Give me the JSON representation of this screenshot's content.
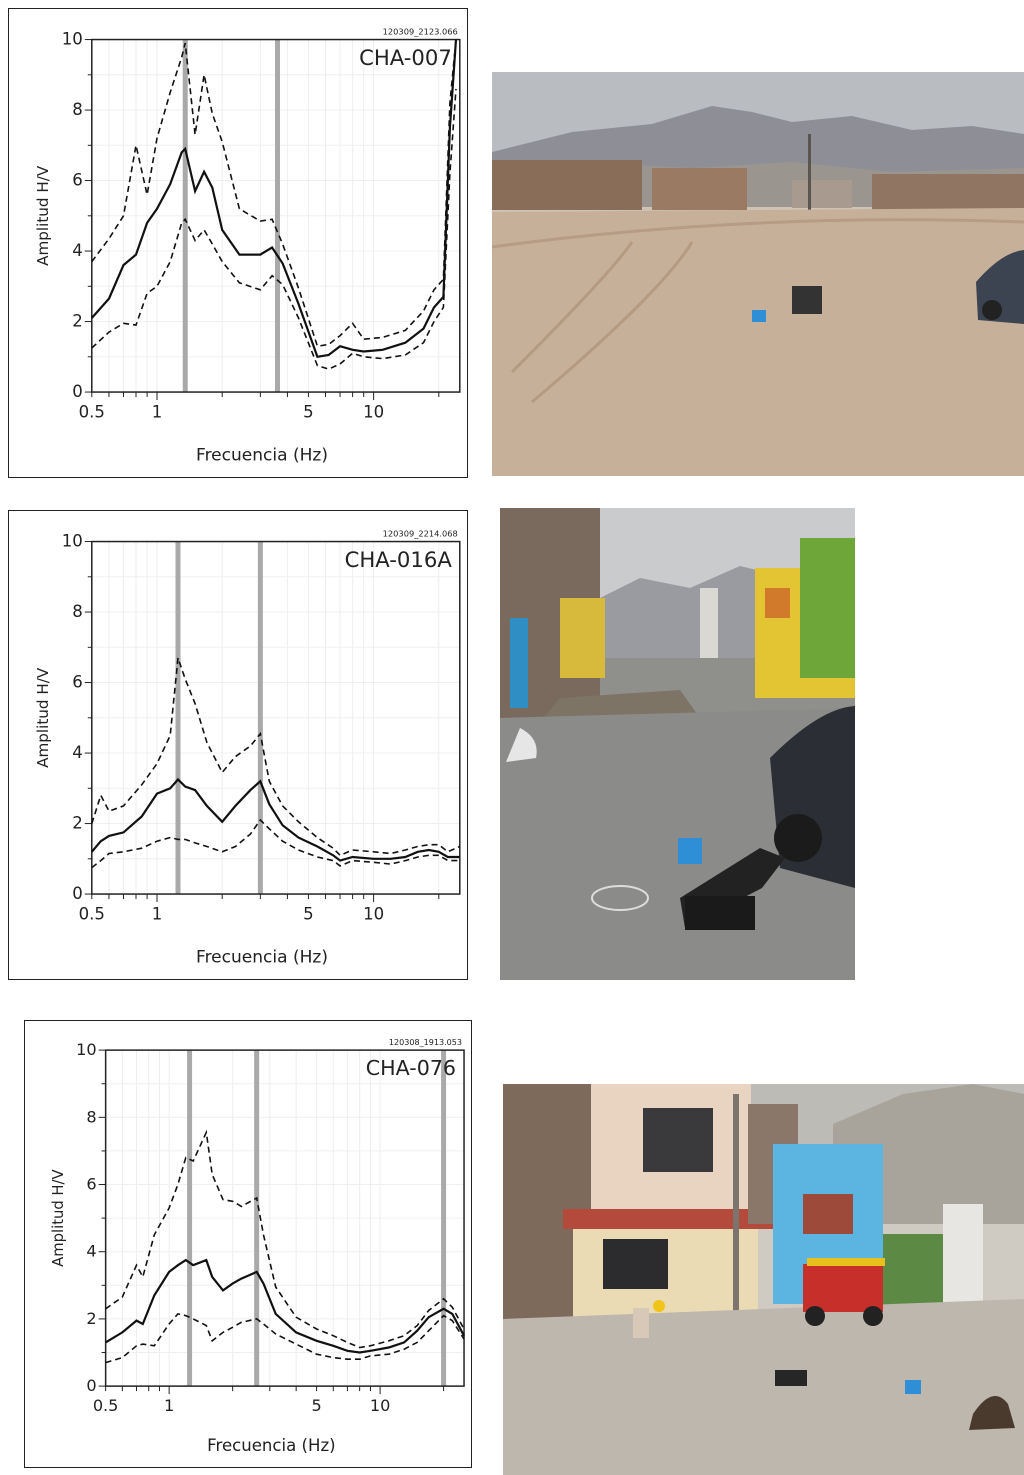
{
  "chart_data": [
    {
      "type": "line",
      "station": "CHA-007",
      "record_id": "120309_2123.066",
      "xlabel": "Frecuencia (Hz)",
      "ylabel": "Amplitud H/V",
      "xscale": "log",
      "xlim": [
        0.5,
        25
      ],
      "ylim": [
        0,
        10
      ],
      "xticks": [
        "0.5",
        "1",
        "5",
        "10"
      ],
      "yticks": [
        "0",
        "2",
        "4",
        "6",
        "8",
        "10"
      ],
      "peak_bands_hz": [
        1.35,
        3.6
      ],
      "x": [
        0.5,
        0.6,
        0.7,
        0.8,
        0.9,
        1.0,
        1.15,
        1.3,
        1.35,
        1.5,
        1.65,
        1.8,
        2.0,
        2.4,
        3.0,
        3.4,
        3.8,
        4.5,
        5.5,
        6.2,
        7.0,
        8.0,
        9.0,
        11.0,
        14.0,
        17.0,
        19.0,
        21.0,
        22.5,
        24.0
      ],
      "series": [
        {
          "values": [
            1.25,
            1.7,
            1.95,
            1.9,
            2.8,
            3.0,
            3.7,
            4.8,
            4.9,
            4.3,
            4.6,
            4.2,
            3.7,
            3.1,
            2.9,
            3.3,
            3.05,
            2.1,
            0.75,
            0.65,
            0.8,
            1.1,
            1.0,
            0.95,
            1.05,
            1.4,
            2.0,
            2.4,
            6.2,
            8.6
          ],
          "style": "dashed"
        },
        {
          "values": [
            2.1,
            2.65,
            3.6,
            3.9,
            4.8,
            5.2,
            5.9,
            6.8,
            6.9,
            5.7,
            6.25,
            5.8,
            4.6,
            3.9,
            3.9,
            4.1,
            3.65,
            2.5,
            1.0,
            1.05,
            1.3,
            1.2,
            1.15,
            1.2,
            1.4,
            1.8,
            2.4,
            2.7,
            7.5,
            10.0
          ],
          "style": "solid"
        },
        {
          "values": [
            3.7,
            4.35,
            5.0,
            7.0,
            5.6,
            7.2,
            8.5,
            9.5,
            9.9,
            7.3,
            9.0,
            7.9,
            7.1,
            5.2,
            4.85,
            4.9,
            4.2,
            2.95,
            1.3,
            1.35,
            1.6,
            1.95,
            1.5,
            1.55,
            1.75,
            2.3,
            2.9,
            3.2,
            8.2,
            10.0
          ],
          "style": "dashed"
        }
      ]
    },
    {
      "type": "line",
      "station": "CHA-016A",
      "record_id": "120309_2214.068",
      "xlabel": "Frecuencia (Hz)",
      "ylabel": "Amplitud H/V",
      "xscale": "log",
      "xlim": [
        0.5,
        25
      ],
      "ylim": [
        0,
        10
      ],
      "xticks": [
        "0.5",
        "1",
        "5",
        "10"
      ],
      "yticks": [
        "0",
        "2",
        "4",
        "6",
        "8",
        "10"
      ],
      "peak_bands_hz": [
        1.25,
        3.0
      ],
      "x": [
        0.5,
        0.55,
        0.6,
        0.7,
        0.85,
        1.0,
        1.15,
        1.25,
        1.35,
        1.5,
        1.7,
        2.0,
        2.3,
        2.7,
        3.0,
        3.3,
        3.8,
        4.5,
        5.5,
        6.5,
        7.0,
        8.0,
        10.0,
        12.0,
        14.0,
        16.0,
        18.0,
        20.0,
        22.0,
        25.0
      ],
      "series": [
        {
          "values": [
            0.75,
            0.95,
            1.15,
            1.2,
            1.3,
            1.5,
            1.6,
            1.55,
            1.55,
            1.45,
            1.35,
            1.2,
            1.35,
            1.7,
            2.1,
            1.85,
            1.5,
            1.25,
            1.05,
            0.95,
            0.8,
            0.95,
            0.9,
            0.85,
            0.95,
            1.05,
            1.1,
            1.1,
            0.95,
            0.95
          ],
          "style": "dashed"
        },
        {
          "values": [
            1.2,
            1.5,
            1.65,
            1.75,
            2.2,
            2.85,
            3.0,
            3.25,
            3.05,
            2.95,
            2.5,
            2.05,
            2.5,
            2.95,
            3.2,
            2.55,
            1.95,
            1.6,
            1.35,
            1.1,
            0.95,
            1.05,
            1.0,
            1.0,
            1.05,
            1.2,
            1.25,
            1.2,
            1.05,
            1.05
          ],
          "style": "solid"
        },
        {
          "values": [
            2.0,
            2.8,
            2.35,
            2.5,
            3.1,
            3.7,
            4.5,
            6.7,
            6.1,
            5.4,
            4.3,
            3.45,
            3.9,
            4.2,
            4.55,
            3.2,
            2.5,
            2.05,
            1.6,
            1.3,
            1.1,
            1.25,
            1.2,
            1.15,
            1.25,
            1.35,
            1.4,
            1.4,
            1.2,
            1.35
          ],
          "style": "dashed"
        }
      ]
    },
    {
      "type": "line",
      "station": "CHA-076",
      "record_id": "120308_1913.053",
      "xlabel": "Frecuencia (Hz)",
      "ylabel": "Amplitud H/V",
      "xscale": "log",
      "xlim": [
        0.5,
        25
      ],
      "ylim": [
        0,
        10
      ],
      "xticks": [
        "0.5",
        "1",
        "5",
        "10"
      ],
      "yticks": [
        "0",
        "2",
        "4",
        "6",
        "8",
        "10"
      ],
      "peak_bands_hz": [
        1.25,
        2.6,
        20.0
      ],
      "x": [
        0.5,
        0.6,
        0.7,
        0.75,
        0.85,
        1.0,
        1.1,
        1.2,
        1.3,
        1.5,
        1.6,
        1.8,
        2.0,
        2.2,
        2.6,
        2.8,
        3.2,
        4.0,
        5.0,
        6.0,
        7.0,
        8.0,
        9.0,
        11.0,
        13.0,
        15.0,
        17.0,
        20.0,
        22.0,
        25.0
      ],
      "series": [
        {
          "values": [
            0.7,
            0.85,
            1.2,
            1.25,
            1.2,
            1.85,
            2.15,
            2.1,
            2.0,
            1.8,
            1.35,
            1.6,
            1.75,
            1.9,
            2.0,
            1.85,
            1.55,
            1.25,
            0.95,
            0.85,
            0.8,
            0.8,
            0.9,
            0.95,
            1.1,
            1.3,
            1.65,
            2.1,
            1.95,
            1.4
          ],
          "style": "dashed"
        },
        {
          "values": [
            1.3,
            1.6,
            1.95,
            1.85,
            2.7,
            3.4,
            3.6,
            3.75,
            3.6,
            3.75,
            3.25,
            2.85,
            3.05,
            3.2,
            3.4,
            3.05,
            2.15,
            1.6,
            1.35,
            1.2,
            1.05,
            1.0,
            1.05,
            1.15,
            1.3,
            1.65,
            2.05,
            2.3,
            2.15,
            1.5
          ],
          "style": "solid"
        },
        {
          "values": [
            2.3,
            2.65,
            3.6,
            3.25,
            4.5,
            5.3,
            6.0,
            6.8,
            6.7,
            7.55,
            6.3,
            5.55,
            5.5,
            5.35,
            5.6,
            4.5,
            2.95,
            2.05,
            1.7,
            1.5,
            1.3,
            1.15,
            1.2,
            1.35,
            1.5,
            1.8,
            2.25,
            2.6,
            2.35,
            1.7
          ],
          "style": "dashed"
        }
      ]
    }
  ],
  "photos": [
    {
      "subject": "field HVSR measurement on open dirt lot with parked car"
    },
    {
      "subject": "seismometer and recorder case on paved street next to car"
    },
    {
      "subject": "seismometer on street in front of houses with mototaxi"
    }
  ]
}
